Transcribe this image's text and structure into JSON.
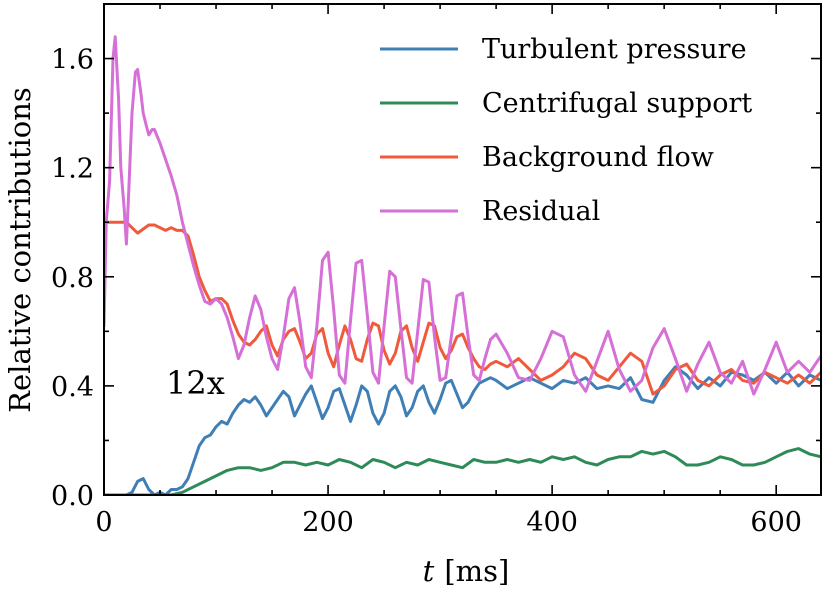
{
  "chart_data": {
    "type": "line",
    "title": "",
    "xlabel_italic": "t",
    "xlabel_unit": "[ms]",
    "ylabel": "Relative contributions",
    "xlim": [
      0,
      640
    ],
    "ylim": [
      0.0,
      1.8
    ],
    "xticks": [
      0,
      200,
      400,
      600
    ],
    "xtick_labels": [
      "0",
      "200",
      "400",
      "600"
    ],
    "yticks": [
      0.0,
      0.4,
      0.8,
      1.2,
      1.6
    ],
    "ytick_labels": [
      "0.0",
      "0.4",
      "0.8",
      "1.2",
      "1.6"
    ],
    "grid": false,
    "legend_position": "top-right",
    "annotation": {
      "text": "12x",
      "x": 100,
      "y": 0.41
    },
    "series": [
      {
        "name": "Turbulent pressure",
        "color": "#3f7fb5",
        "x": [
          0,
          20,
          25,
          30,
          35,
          40,
          45,
          50,
          55,
          60,
          65,
          70,
          75,
          80,
          85,
          90,
          95,
          100,
          105,
          110,
          115,
          120,
          125,
          130,
          135,
          140,
          145,
          150,
          155,
          160,
          165,
          170,
          175,
          180,
          185,
          190,
          195,
          200,
          205,
          210,
          215,
          220,
          225,
          230,
          235,
          240,
          245,
          250,
          255,
          260,
          265,
          270,
          275,
          280,
          285,
          290,
          295,
          300,
          305,
          310,
          315,
          320,
          325,
          330,
          335,
          340,
          345,
          350,
          360,
          370,
          380,
          390,
          400,
          410,
          420,
          430,
          440,
          450,
          460,
          470,
          480,
          490,
          500,
          510,
          520,
          530,
          540,
          550,
          560,
          570,
          580,
          590,
          600,
          610,
          620,
          630,
          640
        ],
        "values": [
          0.0,
          0.0,
          0.01,
          0.05,
          0.06,
          0.02,
          0.0,
          0.01,
          0.0,
          0.02,
          0.02,
          0.03,
          0.06,
          0.12,
          0.18,
          0.21,
          0.22,
          0.25,
          0.27,
          0.26,
          0.3,
          0.33,
          0.35,
          0.34,
          0.36,
          0.33,
          0.29,
          0.32,
          0.35,
          0.38,
          0.36,
          0.29,
          0.33,
          0.37,
          0.4,
          0.34,
          0.28,
          0.32,
          0.38,
          0.39,
          0.33,
          0.27,
          0.33,
          0.4,
          0.38,
          0.3,
          0.26,
          0.3,
          0.38,
          0.4,
          0.36,
          0.29,
          0.32,
          0.38,
          0.4,
          0.34,
          0.3,
          0.35,
          0.41,
          0.42,
          0.37,
          0.32,
          0.34,
          0.38,
          0.41,
          0.42,
          0.43,
          0.42,
          0.39,
          0.41,
          0.43,
          0.41,
          0.39,
          0.42,
          0.41,
          0.43,
          0.39,
          0.4,
          0.39,
          0.43,
          0.35,
          0.34,
          0.42,
          0.47,
          0.44,
          0.39,
          0.43,
          0.4,
          0.45,
          0.44,
          0.42,
          0.45,
          0.41,
          0.45,
          0.4,
          0.44,
          0.42
        ]
      },
      {
        "name": "Centrifugal support",
        "color": "#2e8b57",
        "x": [
          0,
          60,
          70,
          80,
          90,
          100,
          110,
          120,
          130,
          140,
          150,
          160,
          170,
          180,
          190,
          200,
          210,
          220,
          230,
          240,
          250,
          260,
          270,
          280,
          290,
          300,
          310,
          320,
          330,
          340,
          350,
          360,
          370,
          380,
          390,
          400,
          410,
          420,
          430,
          440,
          450,
          460,
          470,
          480,
          490,
          500,
          510,
          520,
          530,
          540,
          550,
          560,
          570,
          580,
          590,
          600,
          610,
          620,
          630,
          640
        ],
        "values": [
          0.0,
          0.0,
          0.01,
          0.03,
          0.05,
          0.07,
          0.09,
          0.1,
          0.1,
          0.09,
          0.1,
          0.12,
          0.12,
          0.11,
          0.12,
          0.11,
          0.13,
          0.12,
          0.1,
          0.13,
          0.12,
          0.1,
          0.12,
          0.11,
          0.13,
          0.12,
          0.11,
          0.1,
          0.13,
          0.12,
          0.12,
          0.13,
          0.12,
          0.13,
          0.12,
          0.14,
          0.13,
          0.14,
          0.12,
          0.11,
          0.13,
          0.14,
          0.14,
          0.16,
          0.15,
          0.16,
          0.14,
          0.11,
          0.11,
          0.12,
          0.14,
          0.13,
          0.11,
          0.11,
          0.12,
          0.14,
          0.16,
          0.17,
          0.15,
          0.14
        ]
      },
      {
        "name": "Background flow",
        "color": "#f05a3c",
        "x": [
          0,
          10,
          20,
          25,
          30,
          40,
          45,
          50,
          55,
          60,
          65,
          70,
          75,
          80,
          85,
          90,
          95,
          100,
          105,
          110,
          115,
          120,
          125,
          130,
          135,
          140,
          145,
          150,
          155,
          160,
          165,
          170,
          175,
          180,
          185,
          190,
          195,
          200,
          205,
          210,
          215,
          220,
          225,
          230,
          235,
          240,
          245,
          250,
          255,
          260,
          265,
          270,
          275,
          280,
          285,
          290,
          295,
          300,
          305,
          310,
          315,
          320,
          325,
          330,
          335,
          340,
          345,
          350,
          360,
          370,
          380,
          390,
          400,
          410,
          420,
          430,
          440,
          450,
          460,
          470,
          480,
          490,
          500,
          510,
          520,
          530,
          540,
          550,
          560,
          570,
          580,
          590,
          600,
          610,
          620,
          630,
          640
        ],
        "values": [
          1.0,
          1.0,
          1.0,
          0.98,
          0.96,
          0.99,
          0.99,
          0.98,
          0.97,
          0.98,
          0.97,
          0.97,
          0.95,
          0.88,
          0.8,
          0.75,
          0.71,
          0.72,
          0.72,
          0.7,
          0.64,
          0.59,
          0.56,
          0.55,
          0.57,
          0.6,
          0.62,
          0.55,
          0.51,
          0.57,
          0.6,
          0.61,
          0.56,
          0.5,
          0.52,
          0.59,
          0.61,
          0.52,
          0.47,
          0.55,
          0.62,
          0.57,
          0.5,
          0.49,
          0.57,
          0.63,
          0.62,
          0.53,
          0.48,
          0.52,
          0.6,
          0.62,
          0.54,
          0.49,
          0.56,
          0.63,
          0.62,
          0.54,
          0.5,
          0.53,
          0.58,
          0.59,
          0.54,
          0.5,
          0.47,
          0.46,
          0.48,
          0.49,
          0.47,
          0.5,
          0.46,
          0.42,
          0.44,
          0.47,
          0.52,
          0.5,
          0.44,
          0.42,
          0.47,
          0.52,
          0.49,
          0.37,
          0.4,
          0.46,
          0.48,
          0.42,
          0.4,
          0.44,
          0.46,
          0.42,
          0.41,
          0.45,
          0.43,
          0.41,
          0.44,
          0.41,
          0.45
        ]
      },
      {
        "name": "Residual",
        "color": "#d66fd6",
        "x": [
          0,
          2,
          5,
          8,
          10,
          13,
          15,
          18,
          20,
          22,
          25,
          28,
          30,
          33,
          35,
          38,
          40,
          43,
          45,
          50,
          55,
          60,
          65,
          70,
          75,
          80,
          85,
          90,
          95,
          100,
          105,
          110,
          115,
          120,
          125,
          130,
          135,
          140,
          145,
          150,
          155,
          160,
          165,
          170,
          175,
          180,
          185,
          190,
          195,
          200,
          205,
          210,
          215,
          220,
          225,
          230,
          235,
          240,
          245,
          250,
          255,
          260,
          265,
          270,
          275,
          280,
          285,
          290,
          295,
          300,
          305,
          310,
          315,
          320,
          325,
          330,
          335,
          340,
          345,
          350,
          360,
          370,
          380,
          390,
          400,
          410,
          420,
          430,
          440,
          450,
          460,
          470,
          480,
          490,
          500,
          510,
          520,
          530,
          540,
          550,
          560,
          570,
          580,
          590,
          600,
          610,
          620,
          630,
          640
        ],
        "values": [
          0.62,
          1.0,
          1.15,
          1.6,
          1.68,
          1.45,
          1.2,
          1.05,
          0.92,
          1.1,
          1.4,
          1.55,
          1.56,
          1.47,
          1.4,
          1.35,
          1.32,
          1.34,
          1.34,
          1.29,
          1.23,
          1.17,
          1.1,
          1.0,
          0.92,
          0.84,
          0.77,
          0.71,
          0.7,
          0.72,
          0.7,
          0.65,
          0.58,
          0.5,
          0.55,
          0.65,
          0.73,
          0.68,
          0.58,
          0.5,
          0.46,
          0.58,
          0.72,
          0.76,
          0.63,
          0.47,
          0.43,
          0.62,
          0.86,
          0.89,
          0.68,
          0.44,
          0.41,
          0.64,
          0.85,
          0.86,
          0.66,
          0.45,
          0.41,
          0.62,
          0.82,
          0.8,
          0.61,
          0.43,
          0.41,
          0.6,
          0.79,
          0.78,
          0.58,
          0.42,
          0.43,
          0.58,
          0.73,
          0.74,
          0.58,
          0.44,
          0.42,
          0.5,
          0.57,
          0.59,
          0.52,
          0.43,
          0.42,
          0.5,
          0.6,
          0.58,
          0.44,
          0.38,
          0.49,
          0.6,
          0.46,
          0.38,
          0.42,
          0.54,
          0.61,
          0.5,
          0.38,
          0.48,
          0.56,
          0.45,
          0.41,
          0.49,
          0.37,
          0.46,
          0.56,
          0.45,
          0.49,
          0.45,
          0.51
        ]
      }
    ]
  }
}
